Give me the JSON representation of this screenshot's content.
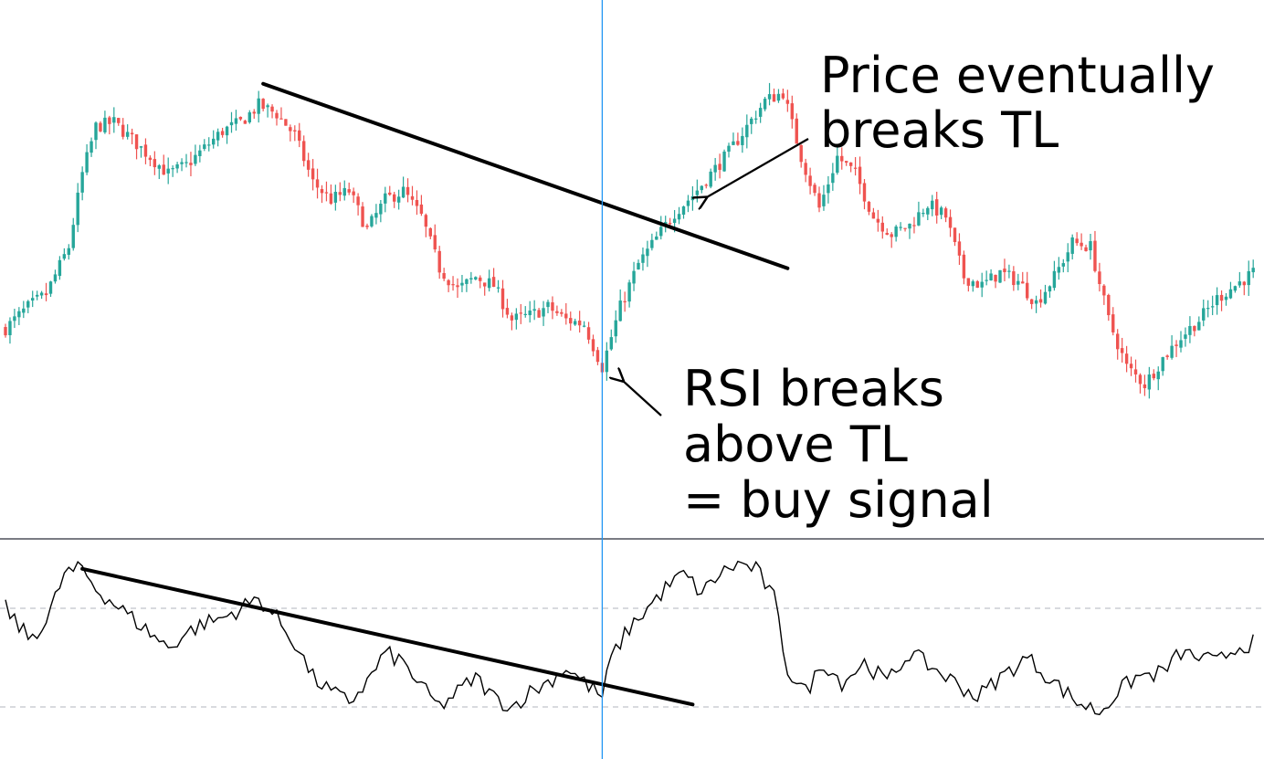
{
  "colors": {
    "up": "#26a69a",
    "down": "#ef5350",
    "trendline": "#000000",
    "cursor": "#2196f3",
    "rsi_line": "#000000",
    "divider": "#2a2e39",
    "level_line": "#b2b5be"
  },
  "icons": {
    "arrow": "thin-arrow-icon"
  },
  "annotations": {
    "price_break": {
      "line1": "Price eventually",
      "line2": "breaks TL"
    },
    "rsi_break": {
      "line1": "RSI breaks",
      "line2": "above TL",
      "line3": "= buy signal"
    }
  },
  "chart_data": [
    {
      "type": "candlestick",
      "title": "",
      "xlabel": "",
      "ylabel": "",
      "grid": false,
      "x": "bar index",
      "ylim": [
        0,
        100
      ],
      "anchors": [
        [
          0,
          32
        ],
        [
          5,
          37
        ],
        [
          9,
          40
        ],
        [
          14,
          51
        ],
        [
          17,
          68
        ],
        [
          20,
          79
        ],
        [
          24,
          80
        ],
        [
          28,
          76
        ],
        [
          32,
          72
        ],
        [
          36,
          68
        ],
        [
          40,
          70
        ],
        [
          44,
          74
        ],
        [
          48,
          78
        ],
        [
          52,
          80
        ],
        [
          56,
          84
        ],
        [
          60,
          82
        ],
        [
          64,
          77
        ],
        [
          68,
          66
        ],
        [
          72,
          62
        ],
        [
          76,
          64
        ],
        [
          80,
          55
        ],
        [
          84,
          62
        ],
        [
          88,
          64
        ],
        [
          92,
          58
        ],
        [
          96,
          46
        ],
        [
          100,
          41
        ],
        [
          104,
          44
        ],
        [
          108,
          42
        ],
        [
          112,
          34
        ],
        [
          116,
          35
        ],
        [
          120,
          37
        ],
        [
          124,
          34
        ],
        [
          128,
          33
        ],
        [
          132,
          23
        ],
        [
          136,
          37
        ],
        [
          140,
          47
        ],
        [
          144,
          53
        ],
        [
          148,
          59
        ],
        [
          152,
          63
        ],
        [
          156,
          68
        ],
        [
          160,
          73
        ],
        [
          164,
          79
        ],
        [
          168,
          85
        ],
        [
          172,
          87
        ],
        [
          176,
          72
        ],
        [
          180,
          60
        ],
        [
          184,
          72
        ],
        [
          188,
          68
        ],
        [
          192,
          58
        ],
        [
          196,
          54
        ],
        [
          200,
          56
        ],
        [
          204,
          61
        ],
        [
          208,
          58
        ],
        [
          212,
          44
        ],
        [
          216,
          42
        ],
        [
          220,
          45
        ],
        [
          224,
          43
        ],
        [
          228,
          38
        ],
        [
          232,
          44
        ],
        [
          236,
          52
        ],
        [
          240,
          51
        ],
        [
          244,
          34
        ],
        [
          248,
          23
        ],
        [
          252,
          19
        ],
        [
          256,
          25
        ],
        [
          260,
          30
        ],
        [
          264,
          34
        ],
        [
          268,
          39
        ],
        [
          272,
          42
        ],
        [
          276,
          45
        ]
      ],
      "highlight_bar": 132,
      "trendline": {
        "from": [
          57,
          89
        ],
        "to": [
          173,
          46
        ]
      },
      "annotation": "Price eventually breaks TL"
    },
    {
      "type": "line",
      "series": [
        {
          "values_from": "rsi_anchors"
        }
      ],
      "x": "bar index",
      "ylim": [
        0,
        100
      ],
      "levels": [
        70,
        30
      ],
      "rsi_anchors": [
        [
          0,
          70
        ],
        [
          5,
          58
        ],
        [
          9,
          64
        ],
        [
          13,
          84
        ],
        [
          17,
          86
        ],
        [
          20,
          78
        ],
        [
          24,
          72
        ],
        [
          28,
          66
        ],
        [
          32,
          60
        ],
        [
          36,
          54
        ],
        [
          40,
          60
        ],
        [
          44,
          64
        ],
        [
          48,
          66
        ],
        [
          52,
          70
        ],
        [
          56,
          74
        ],
        [
          60,
          66
        ],
        [
          64,
          56
        ],
        [
          68,
          42
        ],
        [
          72,
          36
        ],
        [
          76,
          32
        ],
        [
          80,
          40
        ],
        [
          84,
          52
        ],
        [
          88,
          48
        ],
        [
          92,
          38
        ],
        [
          96,
          30
        ],
        [
          100,
          36
        ],
        [
          104,
          42
        ],
        [
          108,
          34
        ],
        [
          112,
          30
        ],
        [
          116,
          36
        ],
        [
          120,
          40
        ],
        [
          124,
          46
        ],
        [
          128,
          40
        ],
        [
          132,
          34
        ],
        [
          134,
          50
        ],
        [
          138,
          62
        ],
        [
          142,
          70
        ],
        [
          146,
          78
        ],
        [
          150,
          84
        ],
        [
          154,
          76
        ],
        [
          158,
          84
        ],
        [
          162,
          88
        ],
        [
          166,
          86
        ],
        [
          170,
          74
        ],
        [
          173,
          45
        ],
        [
          177,
          36
        ],
        [
          181,
          48
        ],
        [
          185,
          40
        ],
        [
          190,
          48
        ],
        [
          195,
          40
        ],
        [
          200,
          52
        ],
        [
          205,
          46
        ],
        [
          210,
          40
        ],
        [
          215,
          34
        ],
        [
          220,
          42
        ],
        [
          226,
          50
        ],
        [
          232,
          40
        ],
        [
          237,
          32
        ],
        [
          242,
          28
        ],
        [
          246,
          36
        ],
        [
          250,
          42
        ],
        [
          256,
          44
        ],
        [
          260,
          52
        ],
        [
          264,
          50
        ],
        [
          268,
          48
        ],
        [
          272,
          54
        ],
        [
          276,
          56
        ]
      ],
      "trendline": {
        "from": [
          17,
          86
        ],
        "to": [
          152,
          31
        ]
      },
      "annotation": "RSI breaks above TL = buy signal"
    }
  ]
}
